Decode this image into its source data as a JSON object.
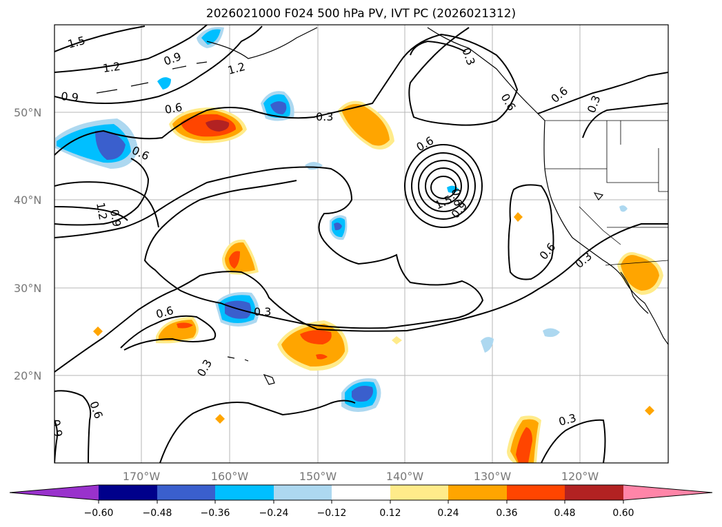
{
  "title": "2026021000 F024 500 hPa PV, IVT PC (2026021312)",
  "lat_labels": [
    "50°N",
    "40°N",
    "30°N",
    "20°N"
  ],
  "lon_labels": [
    "170°W",
    "160°W",
    "150°W",
    "140°W",
    "130°W",
    "120°W"
  ],
  "colorbar": {
    "ticks": [
      "−0.60",
      "−0.48",
      "−0.36",
      "−0.24",
      "−0.12",
      "0.12",
      "0.24",
      "0.36",
      "0.48",
      "0.60"
    ],
    "colors": [
      "#9932cc",
      "#00008b",
      "#3a5fcd",
      "#00bfff",
      "#add8f0",
      "#ffffff",
      "#ffeb8a",
      "#ffa500",
      "#ff4500",
      "#b22222",
      "#ff85a8"
    ]
  },
  "contour_labels": [
    "1.5",
    "1.2",
    "0.9",
    "0.9",
    "1.2",
    "0.6",
    "0.6",
    "0.3",
    "0.6",
    "1.2",
    "0.9",
    "0.6",
    "1.5",
    "0.9",
    "0.6",
    "0.3",
    "0.6",
    "0.3",
    "0.3",
    "0.3",
    "0.6",
    "0.9",
    "0.6",
    "0.3",
    "0.3",
    "0.6"
  ]
}
